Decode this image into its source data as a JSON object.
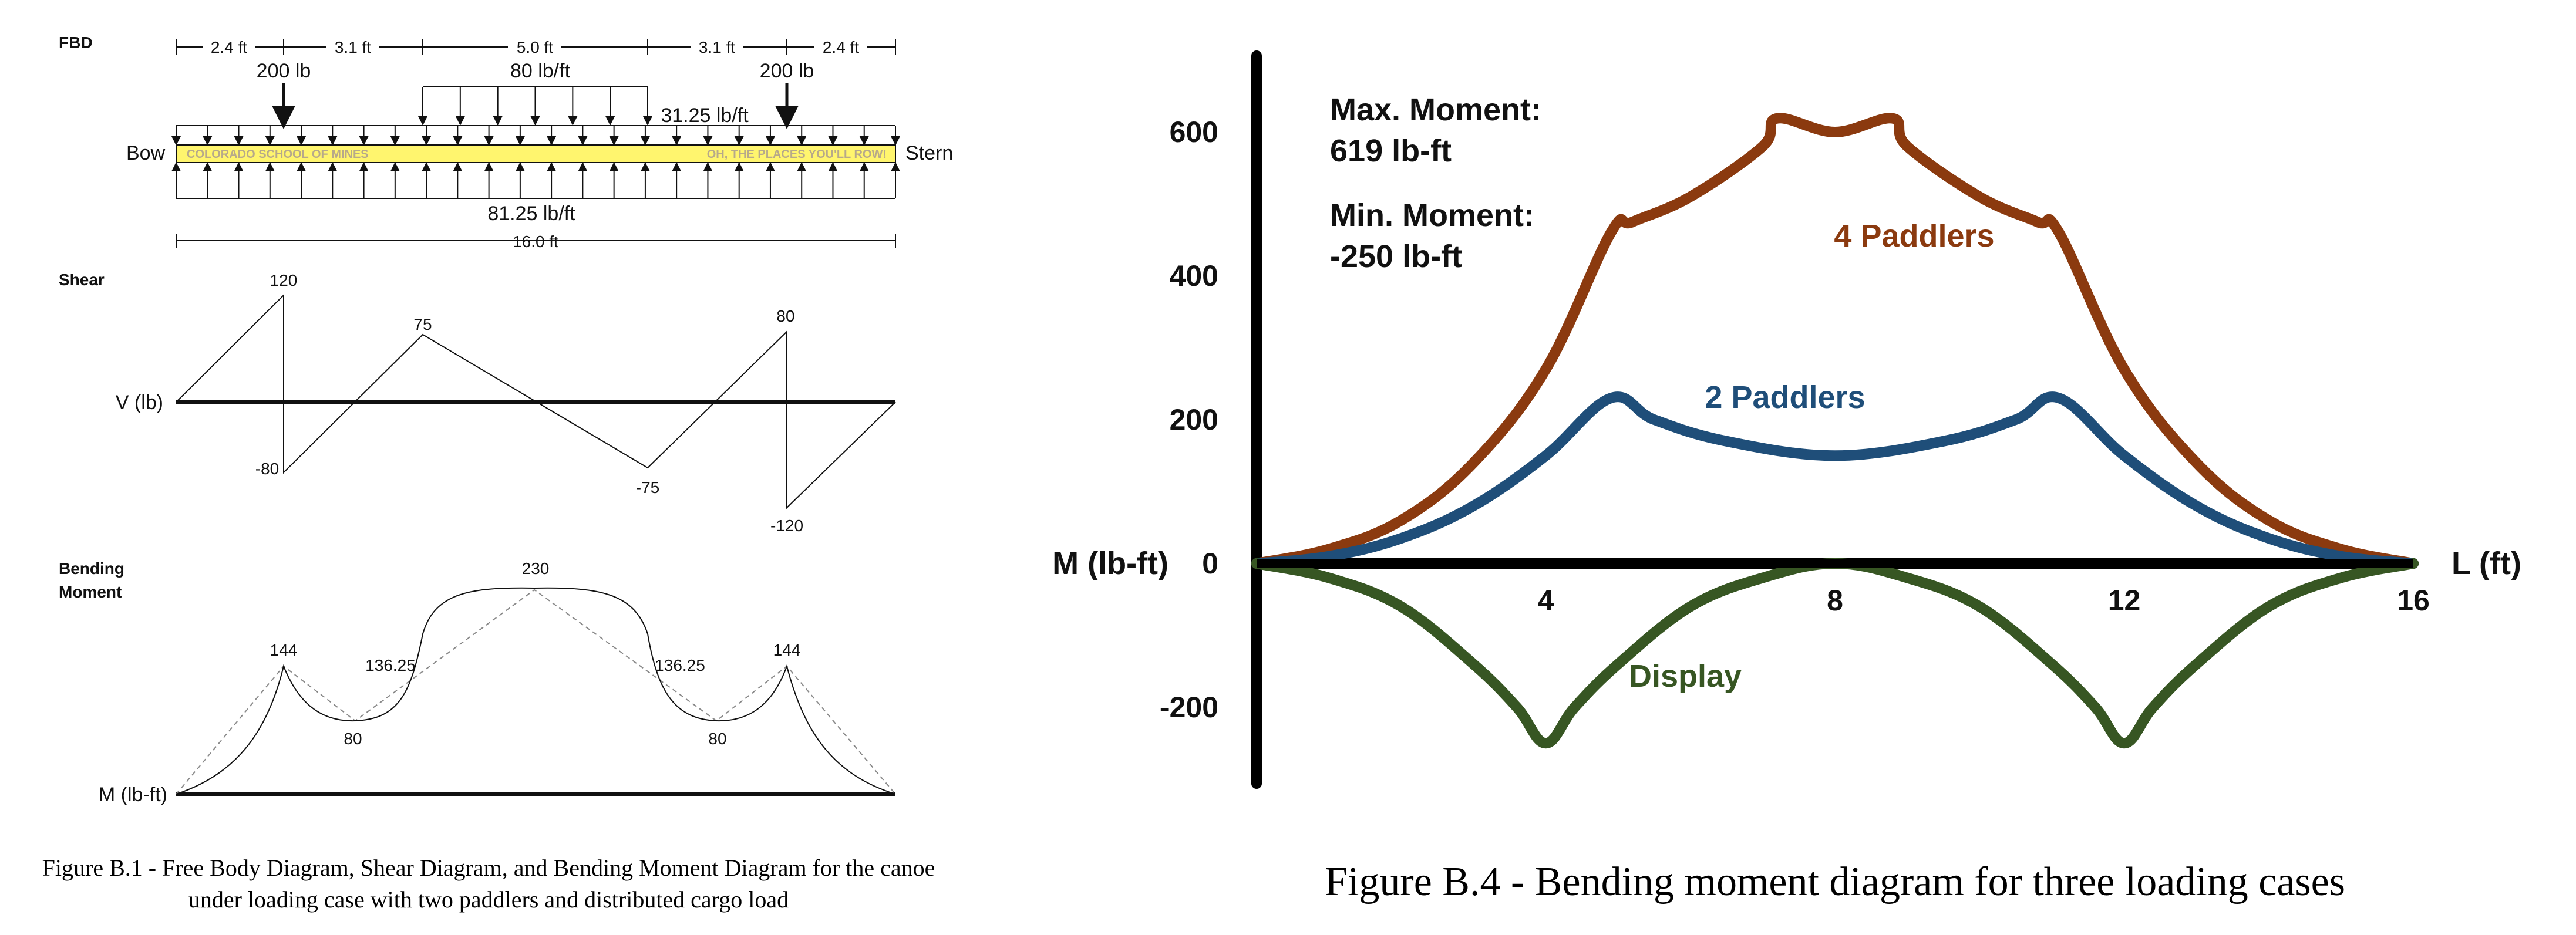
{
  "left": {
    "fbd_label": "FBD",
    "dims": [
      "2.4 ft",
      "3.1 ft",
      "5.0 ft",
      "3.1 ft",
      "2.4 ft"
    ],
    "point_load_left": "200 lb",
    "point_load_right": "200 lb",
    "dist_load_top": "80 lb/ft",
    "dist_load_uniform": "31.25 lb/ft",
    "bow": "Bow",
    "stern": "Stern",
    "canoe_left_text": "COLORADO SCHOOL OF MINES",
    "canoe_right_text": "OH, THE PLACES YOU'LL ROW!",
    "buoyancy": "81.25 lb/ft",
    "total_length": "16.0 ft",
    "shear_label": "Shear",
    "shear_axis": "V (lb)",
    "shear_values": [
      "120",
      "-80",
      "75",
      "-75",
      "80",
      "-120"
    ],
    "moment_label_1": "Bending",
    "moment_label_2": "Moment",
    "moment_axis": "M (lb-ft)",
    "moment_values": [
      "144",
      "136.25",
      "80",
      "230",
      "136.25",
      "80",
      "144"
    ],
    "caption_line1": "Figure B.1 - Free Body Diagram, Shear Diagram, and Bending Moment Diagram for the canoe",
    "caption_line2": "under loading case with two paddlers and distributed cargo load"
  },
  "right": {
    "max_label": "Max. Moment:",
    "max_value": "619 lb-ft",
    "min_label": "Min. Moment:",
    "min_value": "-250 lb-ft",
    "caption": "Figure B.4 - Bending moment diagram for three loading cases"
  },
  "chart_data": {
    "type": "line",
    "xlabel": "L (ft)",
    "ylabel": "M (lb-ft)",
    "xlim": [
      0,
      16
    ],
    "ylim": [
      -300,
      700
    ],
    "x_ticks": [
      4,
      8,
      12,
      16
    ],
    "y_ticks": [
      600,
      400,
      200,
      0,
      -200
    ],
    "colors": {
      "4 Paddlers": "#8B3A0F",
      "2 Paddlers": "#1F4E79",
      "Display": "#375623"
    },
    "series": [
      {
        "name": "4 Paddlers",
        "x": [
          0,
          1,
          2,
          3,
          4,
          4.9,
          5.2,
          6,
          7,
          7.2,
          8,
          8.8,
          9,
          10,
          10.8,
          11.1,
          12,
          13,
          14,
          15,
          16
        ],
        "values": [
          0,
          20,
          60,
          140,
          270,
          460,
          475,
          510,
          580,
          619,
          600,
          619,
          580,
          510,
          475,
          460,
          270,
          140,
          60,
          20,
          0
        ]
      },
      {
        "name": "2 Paddlers",
        "x": [
          0,
          1,
          2,
          3,
          4,
          4.9,
          5.5,
          6.5,
          8,
          9.5,
          10.5,
          11.1,
          12,
          13,
          14,
          15,
          16
        ],
        "values": [
          0,
          10,
          35,
          80,
          150,
          230,
          200,
          170,
          150,
          170,
          200,
          230,
          150,
          80,
          35,
          10,
          0
        ]
      },
      {
        "name": "Display",
        "x": [
          0,
          1,
          2,
          3,
          3.6,
          4,
          4.4,
          5,
          6,
          7,
          8,
          9,
          10,
          11,
          11.6,
          12,
          12.4,
          13,
          14,
          15,
          16
        ],
        "values": [
          0,
          -20,
          -60,
          -140,
          -200,
          -250,
          -200,
          -140,
          -60,
          -20,
          0,
          -20,
          -60,
          -140,
          -200,
          -250,
          -200,
          -140,
          -60,
          -20,
          0
        ]
      }
    ]
  }
}
